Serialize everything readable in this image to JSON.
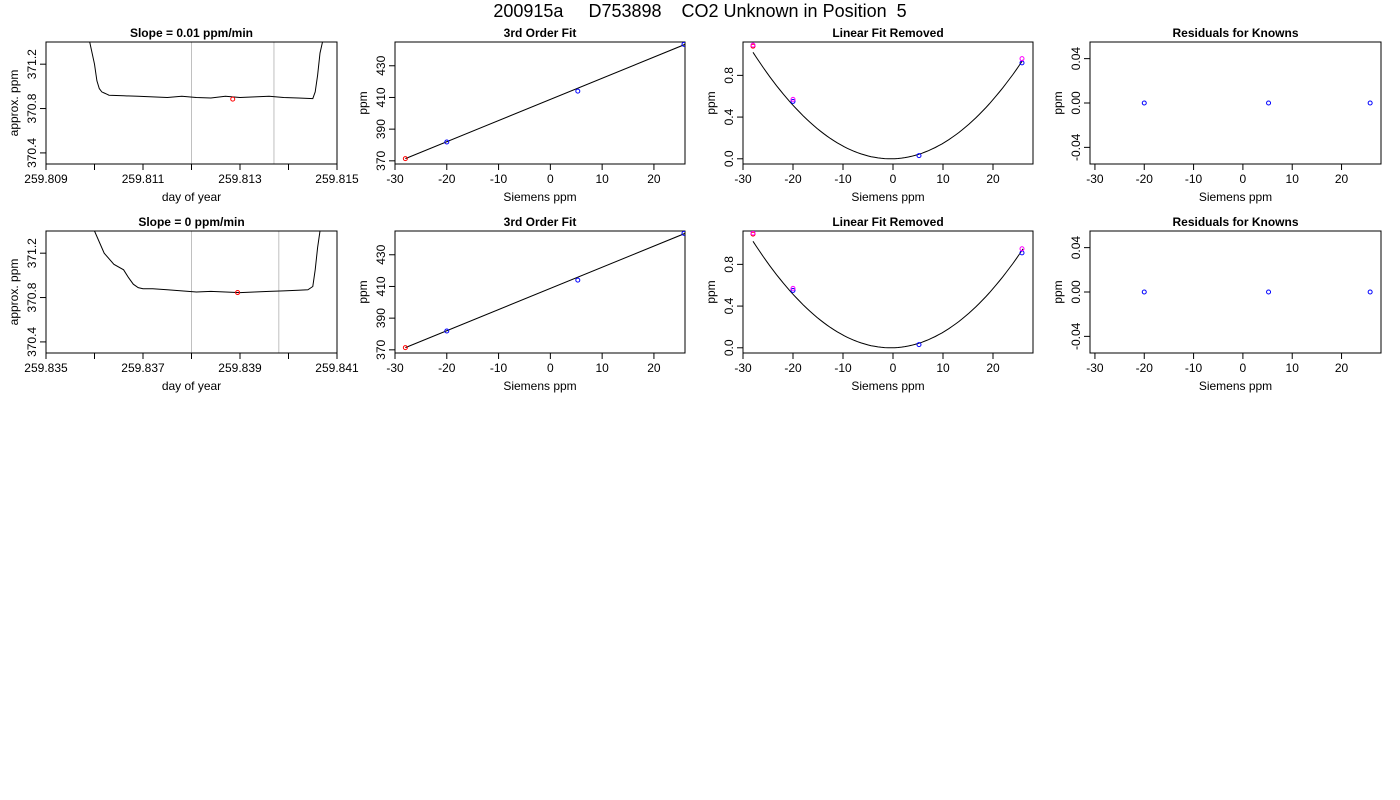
{
  "title": "200915a     D753898    CO2 Unknown in Position  5",
  "colors": {
    "trace": "#000000",
    "known": "#0000ff",
    "unknown": "#ff0000",
    "alt": "#ff00ff",
    "marker": "#c0c0c0"
  },
  "chart_data": [
    {
      "type": "line",
      "title": "Slope =  0.01  ppm/min",
      "xlabel": "day of year",
      "ylabel": "approx. ppm",
      "xlim": [
        259.809,
        259.815
      ],
      "ylim": [
        370.3,
        371.4
      ],
      "xticks": [
        259.809,
        259.81,
        259.811,
        259.812,
        259.813,
        259.814,
        259.815
      ],
      "xtick_labels": [
        "259.809",
        "",
        "259.811",
        "",
        "259.813",
        "",
        "259.815"
      ],
      "yticks": [
        370.4,
        370.8,
        371.2
      ],
      "ytick_labels": [
        "370.4",
        "370.8",
        "371.2"
      ],
      "vlines": [
        259.812,
        259.8137
      ],
      "series": [
        {
          "x": [
            259.8099,
            259.81,
            259.81005,
            259.8101,
            259.81015,
            259.8102,
            259.81025,
            259.8103,
            259.8106,
            259.8109,
            259.8112,
            259.8115,
            259.8118,
            259.8121,
            259.8124,
            259.8127,
            259.813,
            259.8133,
            259.8136,
            259.8139,
            259.8142,
            259.8145,
            259.81455,
            259.8146,
            259.81465,
            259.8147
          ],
          "y": [
            371.4,
            371.2,
            371.05,
            370.98,
            370.95,
            370.94,
            370.93,
            370.92,
            370.915,
            370.91,
            370.905,
            370.9,
            370.91,
            370.9,
            370.895,
            370.91,
            370.9,
            370.905,
            370.91,
            370.9,
            370.895,
            370.89,
            370.95,
            371.1,
            371.3,
            371.4
          ]
        }
      ],
      "points": [
        {
          "x": 259.81285,
          "y": 370.885,
          "color": "unknown"
        }
      ]
    },
    {
      "type": "scatter",
      "title": "3rd Order Fit",
      "xlabel": "Siemens ppm",
      "ylabel": "ppm",
      "xlim": [
        -30,
        26
      ],
      "ylim": [
        368,
        445
      ],
      "xticks": [
        -30,
        -20,
        -10,
        0,
        10,
        20
      ],
      "xtick_labels": [
        "-30",
        "-20",
        "-10",
        "0",
        "10",
        "20"
      ],
      "yticks": [
        370,
        390,
        410,
        430
      ],
      "ytick_labels": [
        "370",
        "390",
        "410",
        "430"
      ],
      "series": [
        {
          "x": [
            -28,
            26
          ],
          "y": [
            371.4,
            443.5
          ]
        }
      ],
      "points": [
        {
          "x": -28,
          "y": 371.4,
          "color": "unknown"
        },
        {
          "x": -20,
          "y": 381.9,
          "color": "known"
        },
        {
          "x": 5.3,
          "y": 414,
          "color": "known"
        },
        {
          "x": 25.8,
          "y": 443.5,
          "color": "known"
        }
      ]
    },
    {
      "type": "scatter",
      "title": "Linear Fit Removed",
      "xlabel": "Siemens ppm",
      "ylabel": "ppm",
      "xlim": [
        -30,
        28
      ],
      "ylim": [
        -0.05,
        1.12
      ],
      "xticks": [
        -30,
        -20,
        -10,
        0,
        10,
        20
      ],
      "xtick_labels": [
        "-30",
        "-20",
        "-10",
        "0",
        "10",
        "20"
      ],
      "yticks": [
        0,
        0.4,
        0.8
      ],
      "ytick_labels": [
        "0.0",
        "0.4",
        "0.8"
      ],
      "curve": {
        "a": 0.00135,
        "x0": -0.5,
        "from": -28,
        "to": 26
      },
      "points": [
        {
          "x": -28,
          "y": 1.08,
          "color": "unknown"
        },
        {
          "x": -28,
          "y": 1.09,
          "color": "alt"
        },
        {
          "x": -20,
          "y": 0.55,
          "color": "known"
        },
        {
          "x": -20,
          "y": 0.57,
          "color": "alt"
        },
        {
          "x": 5.2,
          "y": 0.03,
          "color": "known"
        },
        {
          "x": 25.8,
          "y": 0.92,
          "color": "known"
        },
        {
          "x": 25.8,
          "y": 0.96,
          "color": "alt"
        }
      ]
    },
    {
      "type": "scatter",
      "title": "Residuals for Knowns",
      "xlabel": "Siemens ppm",
      "ylabel": "ppm",
      "xlim": [
        -31,
        28
      ],
      "ylim": [
        -0.055,
        0.055
      ],
      "xticks": [
        -30,
        -20,
        -10,
        0,
        10,
        20
      ],
      "xtick_labels": [
        "-30",
        "-20",
        "-10",
        "0",
        "10",
        "20"
      ],
      "yticks": [
        -0.04,
        0,
        0.04
      ],
      "ytick_labels": [
        "-0.04",
        "0.00",
        "0.04"
      ],
      "points": [
        {
          "x": -20,
          "y": 0,
          "color": "known"
        },
        {
          "x": 5.2,
          "y": 0,
          "color": "known"
        },
        {
          "x": 25.8,
          "y": 0,
          "color": "known"
        }
      ]
    },
    {
      "type": "line",
      "title": "Slope =  0  ppm/min",
      "xlabel": "day of year",
      "ylabel": "approx. ppm",
      "xlim": [
        259.835,
        259.841
      ],
      "ylim": [
        370.3,
        371.4
      ],
      "xticks": [
        259.835,
        259.836,
        259.837,
        259.838,
        259.839,
        259.84,
        259.841
      ],
      "xtick_labels": [
        "259.835",
        "",
        "259.837",
        "",
        "259.839",
        "",
        "259.841"
      ],
      "yticks": [
        370.4,
        370.8,
        371.2
      ],
      "ytick_labels": [
        "370.4",
        "370.8",
        "371.2"
      ],
      "vlines": [
        259.838,
        259.8398
      ],
      "series": [
        {
          "x": [
            259.836,
            259.8362,
            259.8364,
            259.8366,
            259.8367,
            259.8368,
            259.8369,
            259.837,
            259.8372,
            259.8375,
            259.8378,
            259.8381,
            259.8384,
            259.8387,
            259.839,
            259.8393,
            259.8396,
            259.8399,
            259.8402,
            259.8404,
            259.8405,
            259.84055,
            259.8406,
            259.84065
          ],
          "y": [
            371.4,
            371.2,
            371.1,
            371.05,
            370.98,
            370.92,
            370.89,
            370.88,
            370.88,
            370.87,
            370.86,
            370.85,
            370.855,
            370.85,
            370.845,
            370.85,
            370.855,
            370.86,
            370.865,
            370.87,
            370.9,
            371.05,
            371.25,
            371.4
          ]
        }
      ],
      "points": [
        {
          "x": 259.83895,
          "y": 370.845,
          "color": "unknown"
        }
      ]
    },
    {
      "type": "scatter",
      "title": "3rd Order Fit",
      "xlabel": "Siemens ppm",
      "ylabel": "ppm",
      "xlim": [
        -30,
        26
      ],
      "ylim": [
        368,
        445
      ],
      "xticks": [
        -30,
        -20,
        -10,
        0,
        10,
        20
      ],
      "xtick_labels": [
        "-30",
        "-20",
        "-10",
        "0",
        "10",
        "20"
      ],
      "yticks": [
        370,
        390,
        410,
        430
      ],
      "ytick_labels": [
        "370",
        "390",
        "410",
        "430"
      ],
      "series": [
        {
          "x": [
            -28,
            26
          ],
          "y": [
            371.4,
            443.5
          ]
        }
      ],
      "points": [
        {
          "x": -28,
          "y": 371.4,
          "color": "unknown"
        },
        {
          "x": -20,
          "y": 381.9,
          "color": "known"
        },
        {
          "x": 5.3,
          "y": 414,
          "color": "known"
        },
        {
          "x": 25.8,
          "y": 443.5,
          "color": "known"
        }
      ]
    },
    {
      "type": "scatter",
      "title": "Linear Fit Removed",
      "xlabel": "Siemens ppm",
      "ylabel": "ppm",
      "xlim": [
        -30,
        28
      ],
      "ylim": [
        -0.05,
        1.12
      ],
      "xticks": [
        -30,
        -20,
        -10,
        0,
        10,
        20
      ],
      "xtick_labels": [
        "-30",
        "-20",
        "-10",
        "0",
        "10",
        "20"
      ],
      "yticks": [
        0,
        0.4,
        0.8
      ],
      "ytick_labels": [
        "0.0",
        "0.4",
        "0.8"
      ],
      "curve": {
        "a": 0.00135,
        "x0": -0.5,
        "from": -28,
        "to": 26
      },
      "points": [
        {
          "x": -28,
          "y": 1.09,
          "color": "unknown"
        },
        {
          "x": -28,
          "y": 1.1,
          "color": "alt"
        },
        {
          "x": -20,
          "y": 0.55,
          "color": "known"
        },
        {
          "x": -20,
          "y": 0.57,
          "color": "alt"
        },
        {
          "x": 5.2,
          "y": 0.03,
          "color": "known"
        },
        {
          "x": 25.8,
          "y": 0.91,
          "color": "known"
        },
        {
          "x": 25.8,
          "y": 0.95,
          "color": "alt"
        }
      ]
    },
    {
      "type": "scatter",
      "title": "Residuals for Knowns",
      "xlabel": "Siemens ppm",
      "ylabel": "ppm",
      "xlim": [
        -31,
        28
      ],
      "ylim": [
        -0.055,
        0.055
      ],
      "xticks": [
        -30,
        -20,
        -10,
        0,
        10,
        20
      ],
      "xtick_labels": [
        "-30",
        "-20",
        "-10",
        "0",
        "10",
        "20"
      ],
      "yticks": [
        -0.04,
        0,
        0.04
      ],
      "ytick_labels": [
        "-0.04",
        "0.00",
        "0.04"
      ],
      "points": [
        {
          "x": -20,
          "y": 0,
          "color": "known"
        },
        {
          "x": 5.2,
          "y": 0,
          "color": "known"
        },
        {
          "x": 25.8,
          "y": 0,
          "color": "known"
        }
      ]
    }
  ]
}
